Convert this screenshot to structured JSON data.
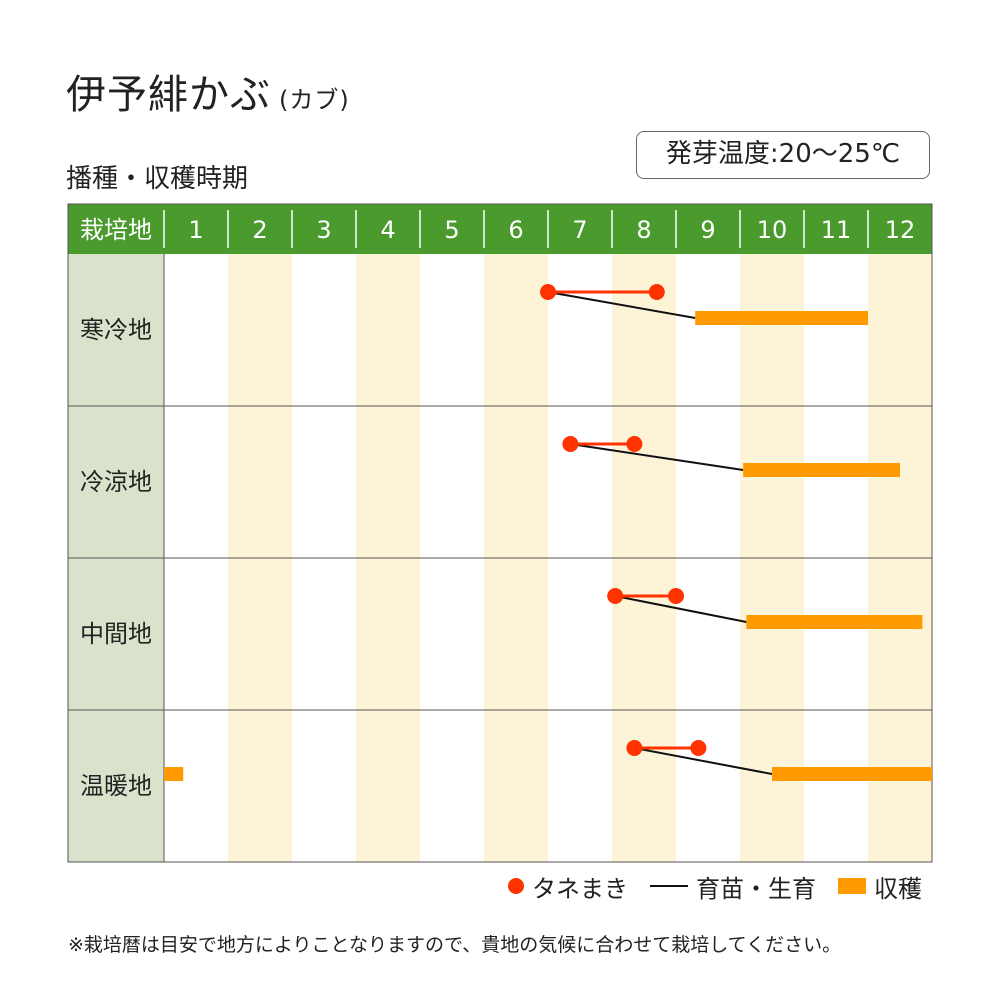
{
  "header": {
    "title": "伊予緋かぶ",
    "title_sub": "(カブ)",
    "subtitle": "播種・収穫時期",
    "germination_temp": "発芽温度:20〜25℃"
  },
  "colors": {
    "header_green": "#4a9a2e",
    "region_col_bg": "#d9e3cc",
    "stripe_cream": "#fdf4d8",
    "sowing_red": "#ff3300",
    "harvest_orange": "#ff9a00",
    "seedling_black": "#111111"
  },
  "chart_data": {
    "type": "gantt",
    "corner_label": "栽培地",
    "months": [
      "1",
      "2",
      "3",
      "4",
      "5",
      "6",
      "7",
      "8",
      "9",
      "10",
      "11",
      "12"
    ],
    "x_range": [
      1,
      13
    ],
    "rows": [
      {
        "region": "寒冷地",
        "sowing": [
          7.0,
          8.7
        ],
        "harvest": [
          [
            9.3,
            12.0
          ]
        ]
      },
      {
        "region": "冷涼地",
        "sowing": [
          7.35,
          8.35
        ],
        "harvest": [
          [
            10.05,
            12.5
          ]
        ]
      },
      {
        "region": "中間地",
        "sowing": [
          8.05,
          9.0
        ],
        "harvest": [
          [
            10.1,
            12.85
          ]
        ]
      },
      {
        "region": "温暖地",
        "sowing": [
          8.35,
          9.35
        ],
        "harvest": [
          [
            10.5,
            13.0
          ],
          [
            1.0,
            1.3
          ]
        ]
      }
    ]
  },
  "legend": {
    "sowing": "タネまき",
    "seedling": "育苗・生育",
    "harvest": "収穫"
  },
  "footnote": "※栽培暦は目安で地方によりことなりますので、貴地の気候に合わせて栽培してください。"
}
